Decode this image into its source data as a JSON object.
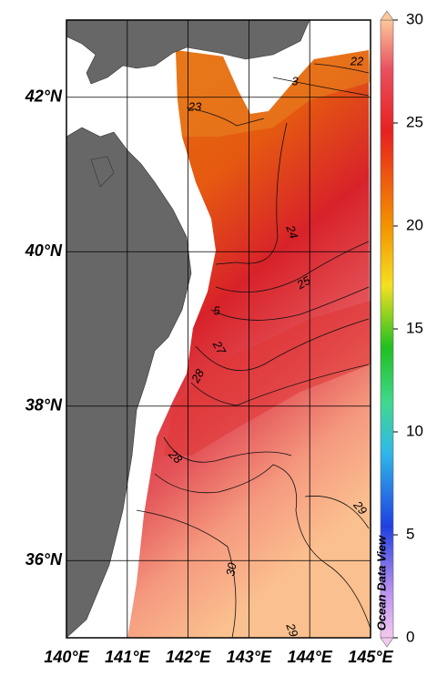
{
  "map": {
    "lon_range": [
      140,
      145
    ],
    "lat_range": [
      35,
      43
    ],
    "lon_ticks": [
      {
        "value": 140,
        "label": "140°E"
      },
      {
        "value": 141,
        "label": "141°E"
      },
      {
        "value": 142,
        "label": "142°E"
      },
      {
        "value": 143,
        "label": "143°E"
      },
      {
        "value": 144,
        "label": "144°E"
      },
      {
        "value": 145,
        "label": "145°E"
      }
    ],
    "lat_ticks": [
      {
        "value": 36,
        "label": "36°N"
      },
      {
        "value": 38,
        "label": "38°N"
      },
      {
        "value": 40,
        "label": "40°N"
      },
      {
        "value": 42,
        "label": "42°N"
      }
    ],
    "colorbar": {
      "range": [
        0,
        30
      ],
      "ticks": [
        0,
        5,
        10,
        15,
        20,
        25,
        30
      ]
    },
    "contour_labels": [
      "22",
      "3",
      "23",
      "24",
      "25",
      "5",
      "27",
      "28",
      "28",
      "29",
      "30",
      "29"
    ],
    "watermark": "Ocean Data View"
  }
}
